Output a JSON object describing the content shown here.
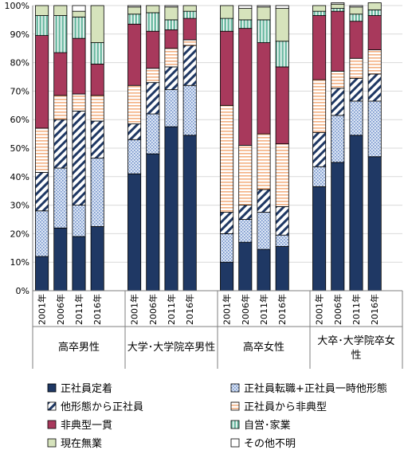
{
  "chart_data": {
    "type": "bar",
    "stacked": true,
    "ylim": [
      0,
      100
    ],
    "y_ticks": [
      "0%",
      "10%",
      "20%",
      "30%",
      "40%",
      "50%",
      "60%",
      "70%",
      "80%",
      "90%",
      "100%"
    ],
    "groups": [
      {
        "label": "高卒男性",
        "categories": [
          "2001年",
          "2006年",
          "2011年",
          "2016年"
        ]
      },
      {
        "label": "大学･大学院卒男性",
        "categories": [
          "2001年",
          "2006年",
          "2011年",
          "2016年"
        ]
      },
      {
        "label": "高卒女性",
        "categories": [
          "2001年",
          "2006年",
          "2011年",
          "2016年"
        ]
      },
      {
        "label": "大卒･大学院卒女性",
        "categories": [
          "2001年",
          "2006年",
          "2011年",
          "2016年"
        ]
      }
    ],
    "series": [
      {
        "name": "正社員定着",
        "color": "#1f3864",
        "pattern": "solid",
        "values": [
          12.0,
          22.0,
          19.0,
          22.5,
          41.0,
          48.0,
          57.5,
          54.5,
          10.0,
          17.0,
          14.5,
          15.5,
          36.5,
          45.0,
          54.5,
          47.0
        ]
      },
      {
        "name": "正社員転職+正社員一時他形態",
        "color": "#b4c7e7",
        "pattern": "dots",
        "values": [
          16.0,
          21.0,
          11.0,
          24.0,
          12.0,
          14.0,
          13.0,
          17.5,
          10.0,
          8.0,
          13.0,
          4.0,
          7.0,
          16.5,
          12.0,
          19.5
        ]
      },
      {
        "name": "他形態から正社員",
        "color": "#1f3864",
        "pattern": "diag",
        "values": [
          13.5,
          17.0,
          33.0,
          13.0,
          5.5,
          11.0,
          8.0,
          14.0,
          7.5,
          5.0,
          8.0,
          10.0,
          12.0,
          9.5,
          8.0,
          9.5
        ]
      },
      {
        "name": "正社員から非典型",
        "color": "#f4b183",
        "pattern": "hlines",
        "values": [
          15.5,
          8.5,
          6.0,
          9.0,
          13.5,
          5.0,
          6.5,
          2.0,
          37.5,
          21.0,
          19.5,
          22.0,
          18.5,
          6.0,
          7.0,
          8.5
        ]
      },
      {
        "name": "非典型一貫",
        "color": "#a8395c",
        "pattern": "solid",
        "values": [
          32.5,
          15.0,
          19.5,
          11.0,
          21.5,
          13.0,
          6.5,
          7.5,
          26.0,
          41.0,
          32.0,
          27.0,
          22.5,
          21.0,
          13.0,
          12.0
        ]
      },
      {
        "name": "自営･家業",
        "color": "#70bca5",
        "pattern": "vlines",
        "values": [
          7.0,
          13.0,
          7.5,
          7.5,
          3.5,
          6.5,
          3.5,
          2.5,
          4.5,
          3.0,
          8.0,
          9.0,
          1.5,
          1.0,
          2.5,
          2.0
        ]
      },
      {
        "name": "現在無業",
        "color": "#d6e3bc",
        "pattern": "solid",
        "values": [
          3.5,
          3.5,
          2.0,
          13.0,
          2.5,
          2.5,
          4.5,
          2.0,
          4.5,
          4.0,
          4.5,
          11.5,
          2.0,
          1.5,
          2.5,
          2.5
        ]
      },
      {
        "name": "その他不明",
        "color": "#ffffff",
        "pattern": "solid",
        "values": [
          0.0,
          0.0,
          2.0,
          0.0,
          0.5,
          0.0,
          0.5,
          0.0,
          0.0,
          1.0,
          0.5,
          1.0,
          0.0,
          0.5,
          0.5,
          0.0
        ]
      }
    ]
  }
}
